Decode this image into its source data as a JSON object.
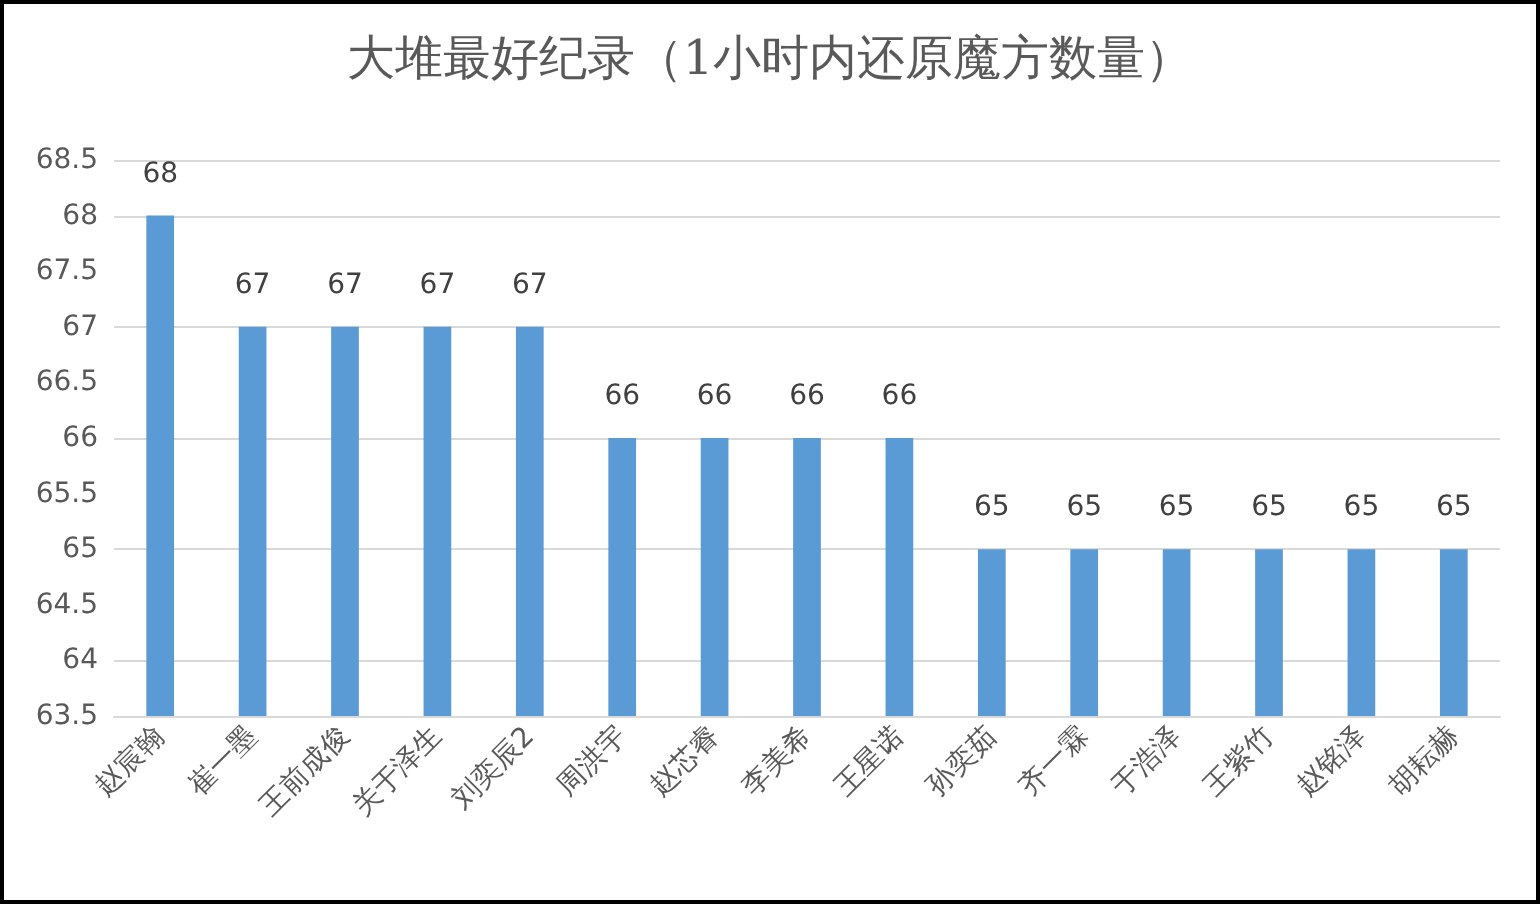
{
  "chart_data": {
    "type": "bar",
    "title": "大堆最好纪录（1小时内还原魔方数量）",
    "categories": [
      "赵宸翰",
      "崔一墨",
      "王前成俊",
      "关于泽生",
      "刘奕辰2",
      "周洪宇",
      "赵芯睿",
      "李美希",
      "王星诺",
      "孙奕茹",
      "齐一霖",
      "于浩泽",
      "王紫竹",
      "赵铭泽",
      "胡耘赫"
    ],
    "values": [
      68,
      67,
      67,
      67,
      67,
      66,
      66,
      66,
      66,
      65,
      65,
      65,
      65,
      65,
      65
    ],
    "color": "#5b9bd5",
    "ylim": [
      63.5,
      68.5
    ],
    "yticks": [
      63.5,
      64,
      64.5,
      65,
      65.5,
      66,
      66.5,
      67,
      67.5,
      68,
      68.5
    ],
    "grid": "y",
    "data_labels": true
  }
}
